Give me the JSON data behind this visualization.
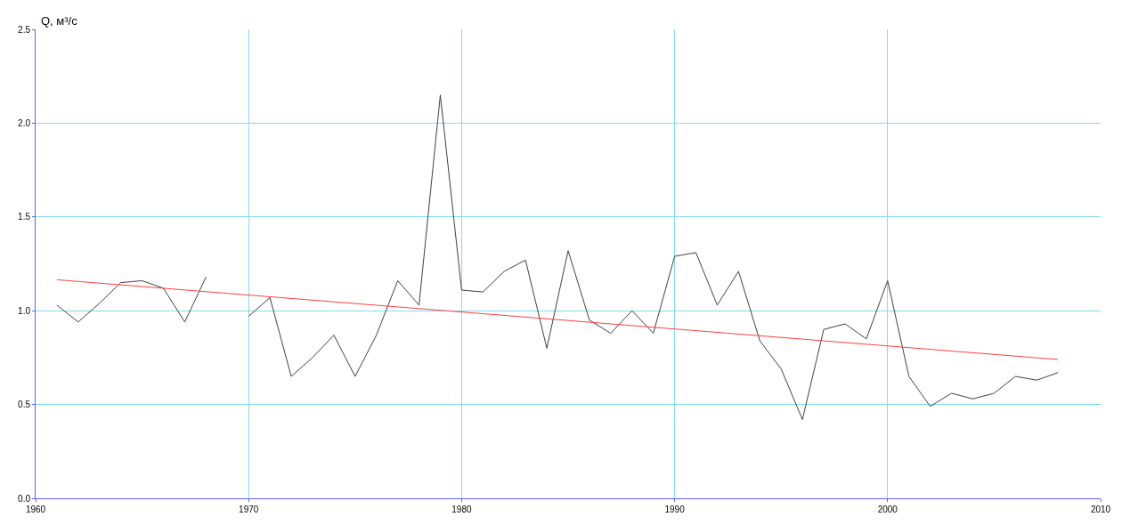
{
  "chart_data": {
    "type": "line",
    "ylabel": "Q, м³/с",
    "x": [
      1961,
      1962,
      1963,
      1964,
      1965,
      1966,
      1967,
      1968,
      1969,
      1970,
      1971,
      1972,
      1973,
      1974,
      1975,
      1976,
      1977,
      1978,
      1979,
      1980,
      1981,
      1982,
      1983,
      1984,
      1985,
      1986,
      1987,
      1988,
      1989,
      1990,
      1991,
      1992,
      1993,
      1994,
      1995,
      1996,
      1997,
      1998,
      1999,
      2000,
      2001,
      2002,
      2003,
      2004,
      2005,
      2006,
      2007,
      2008
    ],
    "series": [
      {
        "color": "#404040",
        "values": [
          1.03,
          0.94,
          1.04,
          1.15,
          1.16,
          1.12,
          0.94,
          1.18,
          null,
          0.97,
          1.07,
          0.65,
          0.75,
          0.87,
          0.65,
          0.87,
          1.16,
          1.03,
          2.15,
          1.11,
          1.1,
          1.21,
          1.27,
          0.8,
          1.32,
          0.95,
          0.88,
          1.0,
          0.88,
          1.29,
          1.31,
          1.03,
          1.21,
          0.84,
          0.69,
          0.42,
          0.9,
          0.93,
          0.85,
          1.16,
          0.65,
          0.49,
          0.56,
          0.53,
          0.56,
          0.65,
          0.63,
          0.67
        ]
      },
      {
        "type": "line",
        "color": "#ff4040",
        "x": [
          1961,
          2008
        ],
        "values": [
          1.165,
          0.74
        ]
      }
    ],
    "xlim": [
      1960,
      2010
    ],
    "xticks": [
      1960,
      1970,
      1980,
      1990,
      2000,
      2010
    ],
    "ylim": [
      0,
      2.5
    ],
    "yticks": [
      {
        "value": 0,
        "label": "0.0"
      },
      0.5,
      {
        "value": 1,
        "label": "1.0"
      },
      1.5,
      {
        "value": 2,
        "label": "2.0"
      },
      2.5
    ],
    "grid": true,
    "marker": "none",
    "line_style": "solid"
  }
}
